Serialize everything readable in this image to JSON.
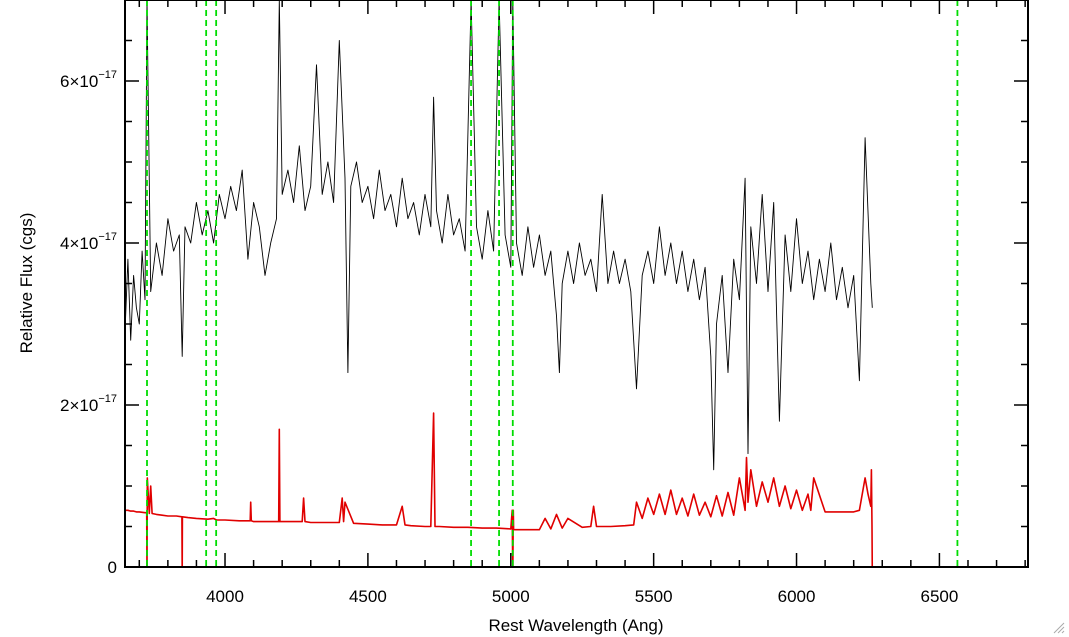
{
  "chart_data": {
    "type": "line",
    "xlabel": "Rest Wavelength (Ang)",
    "ylabel": "Relative Flux (cgs)",
    "xlim": [
      3650,
      6810
    ],
    "ylim": [
      0,
      7e-17
    ],
    "x_ticks": [
      {
        "value": 4000,
        "label": "4000"
      },
      {
        "value": 4500,
        "label": "4500"
      },
      {
        "value": 5000,
        "label": "5000"
      },
      {
        "value": 5500,
        "label": "5500"
      },
      {
        "value": 6000,
        "label": "6000"
      },
      {
        "value": 6500,
        "label": "6500"
      }
    ],
    "y_ticks": [
      {
        "value": 0,
        "mantissa": "0",
        "exponent": ""
      },
      {
        "value": 2e-17,
        "mantissa": "2×10",
        "exponent": "−17"
      },
      {
        "value": 4e-17,
        "mantissa": "4×10",
        "exponent": "−17"
      },
      {
        "value": 6e-17,
        "mantissa": "6×10",
        "exponent": "−17"
      }
    ],
    "x_minor_step": 100,
    "y_minor_step": 5e-18,
    "grid": false,
    "line_markers": {
      "color": "#00dd00",
      "style": "dashed",
      "x": [
        3727,
        3934,
        3969,
        4861,
        4959,
        5007,
        6563
      ]
    },
    "series": [
      {
        "role": "flux",
        "color": "#000000",
        "x": [
          3650,
          3660,
          3670,
          3680,
          3690,
          3700,
          3710,
          3720,
          3727,
          3740,
          3760,
          3780,
          3800,
          3820,
          3840,
          3850,
          3860,
          3880,
          3900,
          3920,
          3940,
          3960,
          3980,
          4000,
          4020,
          4040,
          4060,
          4080,
          4100,
          4120,
          4140,
          4160,
          4180,
          4190,
          4200,
          4220,
          4240,
          4260,
          4280,
          4300,
          4320,
          4340,
          4360,
          4380,
          4400,
          4420,
          4430,
          4440,
          4460,
          4480,
          4500,
          4520,
          4540,
          4560,
          4580,
          4600,
          4620,
          4640,
          4660,
          4680,
          4700,
          4720,
          4730,
          4740,
          4760,
          4780,
          4800,
          4820,
          4840,
          4861,
          4880,
          4900,
          4920,
          4940,
          4959,
          4980,
          5000,
          5007,
          5020,
          5040,
          5060,
          5080,
          5100,
          5120,
          5140,
          5160,
          5170,
          5180,
          5200,
          5220,
          5240,
          5260,
          5280,
          5300,
          5320,
          5340,
          5360,
          5380,
          5400,
          5420,
          5440,
          5460,
          5480,
          5500,
          5520,
          5540,
          5560,
          5580,
          5600,
          5620,
          5640,
          5660,
          5680,
          5700,
          5710,
          5720,
          5740,
          5760,
          5780,
          5800,
          5820,
          5830,
          5840,
          5860,
          5880,
          5900,
          5920,
          5940,
          5960,
          5980,
          6000,
          6020,
          6040,
          6060,
          6080,
          6100,
          6120,
          6140,
          6160,
          6180,
          6200,
          6220,
          6240,
          6260,
          6265
        ],
        "y": [
          2.9e-17,
          3.8e-17,
          2.8e-17,
          3.6e-17,
          3.2e-17,
          3e-17,
          3.9e-17,
          3.3e-17,
          7e-17,
          3.4e-17,
          4e-17,
          3.6e-17,
          4.3e-17,
          3.9e-17,
          4.1e-17,
          2.6e-17,
          4.2e-17,
          4e-17,
          4.5e-17,
          4.1e-17,
          4.4e-17,
          4e-17,
          4.6e-17,
          4.3e-17,
          4.7e-17,
          4.4e-17,
          4.9e-17,
          3.8e-17,
          4.5e-17,
          4.2e-17,
          3.6e-17,
          4e-17,
          4.3e-17,
          7e-17,
          4.6e-17,
          4.9e-17,
          4.5e-17,
          5.2e-17,
          4.4e-17,
          4.7e-17,
          6.2e-17,
          4.6e-17,
          5e-17,
          4.5e-17,
          6.5e-17,
          4.8e-17,
          2.4e-17,
          4.7e-17,
          5e-17,
          4.5e-17,
          4.7e-17,
          4.3e-17,
          4.9e-17,
          4.4e-17,
          4.6e-17,
          4.2e-17,
          4.8e-17,
          4.3e-17,
          4.5e-17,
          4.1e-17,
          4.6e-17,
          4.2e-17,
          5.8e-17,
          4.4e-17,
          4e-17,
          4.6e-17,
          4.1e-17,
          4.3e-17,
          3.9e-17,
          7e-17,
          4.2e-17,
          3.8e-17,
          4.4e-17,
          3.9e-17,
          7e-17,
          4.1e-17,
          3.7e-17,
          7e-17,
          4e-17,
          3.6e-17,
          4.2e-17,
          3.7e-17,
          4.1e-17,
          3.6e-17,
          3.9e-17,
          3.1e-17,
          2.4e-17,
          3.5e-17,
          3.9e-17,
          3.5e-17,
          4e-17,
          3.6e-17,
          3.8e-17,
          3.4e-17,
          4.6e-17,
          3.5e-17,
          3.9e-17,
          3.5e-17,
          3.8e-17,
          3.4e-17,
          2.2e-17,
          3.6e-17,
          3.9e-17,
          3.5e-17,
          4.2e-17,
          3.6e-17,
          4e-17,
          3.5e-17,
          3.9e-17,
          3.4e-17,
          3.8e-17,
          3.3e-17,
          3.7e-17,
          2.6e-17,
          1.2e-17,
          3e-17,
          3.6e-17,
          2.4e-17,
          3.8e-17,
          3.3e-17,
          4.8e-17,
          1.4e-17,
          4.2e-17,
          3.5e-17,
          4.6e-17,
          3.4e-17,
          4.5e-17,
          1.8e-17,
          4.1e-17,
          3.4e-17,
          4.3e-17,
          3.5e-17,
          3.9e-17,
          3.3e-17,
          3.8e-17,
          3.4e-17,
          4e-17,
          3.3e-17,
          3.7e-17,
          3.2e-17,
          3.6e-17,
          2.3e-17,
          5.3e-17,
          3.5e-17,
          3.2e-17
        ]
      },
      {
        "role": "error",
        "color": "#e00000",
        "x": [
          3650,
          3660,
          3670,
          3680,
          3690,
          3700,
          3720,
          3726,
          3727,
          3728,
          3735,
          3740,
          3745,
          3760,
          3780,
          3800,
          3830,
          3849,
          3850,
          3851,
          3870,
          3900,
          3940,
          3960,
          3970,
          4000,
          4050,
          4088,
          4090,
          4092,
          4100,
          4150,
          4188,
          4190,
          4192,
          4200,
          4250,
          4270,
          4275,
          4280,
          4300,
          4350,
          4400,
          4410,
          4415,
          4420,
          4450,
          4500,
          4550,
          4600,
          4620,
          4630,
          4650,
          4700,
          4720,
          4730,
          4735,
          4740,
          4750,
          4800,
          4850,
          4900,
          4950,
          5000,
          5005,
          5007,
          5009,
          5010,
          5050,
          5100,
          5120,
          5140,
          5160,
          5180,
          5200,
          5250,
          5280,
          5290,
          5300,
          5350,
          5400,
          5430,
          5440,
          5460,
          5480,
          5500,
          5520,
          5540,
          5560,
          5580,
          5600,
          5620,
          5640,
          5660,
          5680,
          5700,
          5720,
          5740,
          5760,
          5780,
          5800,
          5820,
          5825,
          5830,
          5840,
          5860,
          5880,
          5900,
          5920,
          5940,
          5960,
          5980,
          6000,
          6020,
          6040,
          6050,
          6060,
          6100,
          6150,
          6200,
          6220,
          6240,
          6250,
          6260,
          6262,
          6264,
          6265,
          6266,
          6300,
          6400,
          6500,
          6600,
          6700,
          6810
        ],
        "y": [
          7e-18,
          7e-18,
          6.9e-18,
          6.9e-18,
          6.8e-18,
          6.8e-18,
          6.7e-18,
          6.7e-18,
          -1e-18,
          1.1e-17,
          6.6e-18,
          1e-17,
          6.6e-18,
          6.5e-18,
          6.4e-18,
          6.3e-18,
          6.3e-18,
          6.2e-18,
          -1e-18,
          6.2e-18,
          6.1e-18,
          6e-18,
          5.9e-18,
          6e-18,
          5.8e-18,
          5.8e-18,
          5.7e-18,
          5.7e-18,
          8e-18,
          5.7e-18,
          5.6e-18,
          5.6e-18,
          5.6e-18,
          1.7e-17,
          5.6e-18,
          5.6e-18,
          5.6e-18,
          5.6e-18,
          8.5e-18,
          5.6e-18,
          5.5e-18,
          5.5e-18,
          5.5e-18,
          8.5e-18,
          5.6e-18,
          8e-18,
          5.4e-18,
          5.3e-18,
          5.2e-18,
          5.2e-18,
          7.5e-18,
          5.2e-18,
          5.1e-18,
          5e-18,
          5e-18,
          1.9e-17,
          5e-18,
          5e-18,
          5e-18,
          4.9e-18,
          4.9e-18,
          4.8e-18,
          4.8e-18,
          4.7e-18,
          7e-18,
          -1e-18,
          7e-18,
          4.6e-18,
          4.6e-18,
          4.6e-18,
          6e-18,
          4.7e-18,
          6.5e-18,
          4.8e-18,
          6e-18,
          4.9e-18,
          5e-18,
          7.5e-18,
          5e-18,
          5e-18,
          5.1e-18,
          5.2e-18,
          8e-18,
          6e-18,
          8.5e-18,
          6.5e-18,
          9e-18,
          6.5e-18,
          9.5e-18,
          6.5e-18,
          8.5e-18,
          6.3e-18,
          9e-18,
          6.4e-18,
          8e-18,
          6.2e-18,
          8.8e-18,
          6.3e-18,
          9.2e-18,
          6.4e-18,
          1.1e-17,
          7e-18,
          1.35e-17,
          8e-18,
          1.2e-17,
          7.5e-18,
          1.05e-17,
          8e-18,
          1.1e-17,
          7.5e-18,
          1e-17,
          7.2e-18,
          9.5e-18,
          7e-18,
          9e-18,
          7e-18,
          1.1e-17,
          6.8e-18,
          6.8e-18,
          6.8e-18,
          7e-18,
          1.1e-17,
          9e-18,
          7.5e-18,
          1.2e-17,
          5e-18,
          -1e-18,
          -1e-18,
          -1e-18,
          -1e-18,
          -1e-18,
          -1e-18,
          -1e-18,
          -1e-18
        ]
      }
    ]
  }
}
